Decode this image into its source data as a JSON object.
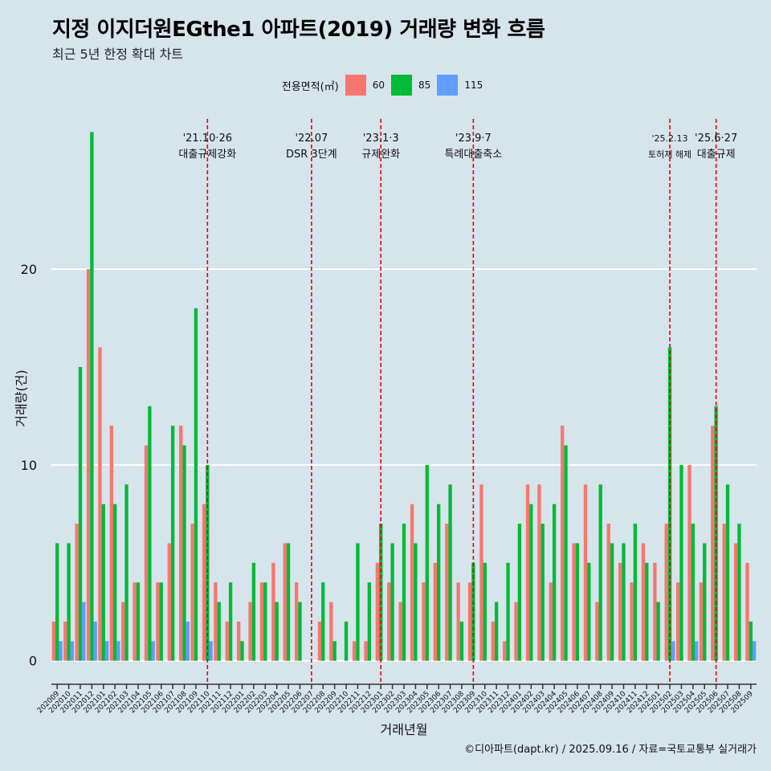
{
  "header": {
    "title": "지정 이지더원EGthe1 아파트(2019) 거래량 변화 흐름",
    "subtitle": "최근 5년 한정 확대 차트"
  },
  "legend": {
    "title": "전용면적(㎡)",
    "items": [
      {
        "label": "60",
        "color": "#f8766d"
      },
      {
        "label": "85",
        "color": "#00ba38"
      },
      {
        "label": "115",
        "color": "#619cff"
      }
    ]
  },
  "caption": "©디아파트(dapt.kr) / 2025.09.16 / 자료=국토교통부 실거래가",
  "chart_data": {
    "type": "bar",
    "xlabel": "거래년월",
    "ylabel": "거래량(건)",
    "ylim": [
      -1.2,
      28
    ],
    "yticks": [
      0,
      10,
      20
    ],
    "grid": true,
    "legend_position": "top",
    "categories": [
      "202009",
      "202010",
      "202011",
      "202012",
      "202101",
      "202102",
      "202103",
      "202104",
      "202105",
      "202106",
      "202107",
      "202108",
      "202109",
      "202110",
      "202111",
      "202112",
      "202201",
      "202202",
      "202203",
      "202204",
      "202205",
      "202206",
      "202207",
      "202208",
      "202209",
      "202210",
      "202211",
      "202212",
      "202301",
      "202302",
      "202303",
      "202304",
      "202305",
      "202306",
      "202307",
      "202308",
      "202309",
      "202310",
      "202311",
      "202312",
      "202401",
      "202402",
      "202403",
      "202404",
      "202405",
      "202406",
      "202407",
      "202408",
      "202409",
      "202410",
      "202411",
      "202412",
      "202501",
      "202502",
      "202503",
      "202504",
      "202505",
      "202506",
      "202507",
      "202508",
      "202509"
    ],
    "series": [
      {
        "name": "60",
        "color": "#f8766d",
        "values": [
          2,
          2,
          7,
          20,
          16,
          12,
          3,
          4,
          11,
          4,
          6,
          12,
          7,
          8,
          4,
          2,
          2,
          3,
          4,
          5,
          6,
          4,
          0,
          2,
          3,
          0,
          1,
          1,
          5,
          4,
          3,
          8,
          4,
          5,
          7,
          4,
          4,
          9,
          2,
          1,
          3,
          9,
          9,
          4,
          12,
          6,
          9,
          3,
          7,
          5,
          4,
          6,
          5,
          7,
          4,
          10,
          4,
          12,
          7,
          6,
          5
        ]
      },
      {
        "name": "85",
        "color": "#00ba38",
        "values": [
          6,
          6,
          15,
          27,
          8,
          8,
          9,
          4,
          13,
          4,
          12,
          11,
          18,
          10,
          3,
          4,
          1,
          5,
          4,
          3,
          6,
          3,
          0,
          4,
          1,
          2,
          6,
          4,
          7,
          6,
          7,
          6,
          10,
          8,
          9,
          2,
          5,
          5,
          3,
          5,
          7,
          8,
          7,
          8,
          11,
          6,
          5,
          9,
          6,
          6,
          7,
          5,
          3,
          16,
          10,
          7,
          6,
          13,
          9,
          7,
          2
        ]
      },
      {
        "name": "115",
        "color": "#619cff",
        "values": [
          1,
          1,
          3,
          2,
          1,
          1,
          0,
          0,
          1,
          0,
          0,
          2,
          0,
          1,
          0,
          0,
          0,
          0,
          0,
          0,
          0,
          0,
          0,
          0,
          0,
          0,
          0,
          0,
          0,
          0,
          0,
          0,
          0,
          0,
          0,
          0,
          0,
          0,
          0,
          0,
          0,
          0,
          0,
          0,
          0,
          0,
          0,
          0,
          0,
          0,
          0,
          0,
          0,
          1,
          0,
          1,
          0,
          0,
          0,
          0,
          1
        ]
      }
    ],
    "annotations": [
      {
        "category": "202110",
        "date": "'21.10·26",
        "label": "대출규제강화"
      },
      {
        "category": "202207",
        "date": "'22.07",
        "label": "DSR 3단계"
      },
      {
        "category": "202301",
        "date": "'23.1·3",
        "label": "규제완화"
      },
      {
        "category": "202309",
        "date": "'23.9·7",
        "label": "특례대출축소"
      },
      {
        "category": "202502",
        "date": "'25.2.13",
        "label": "토허제 해제"
      },
      {
        "category": "202506",
        "date": "'25.6·27",
        "label": "대출규제"
      }
    ]
  }
}
